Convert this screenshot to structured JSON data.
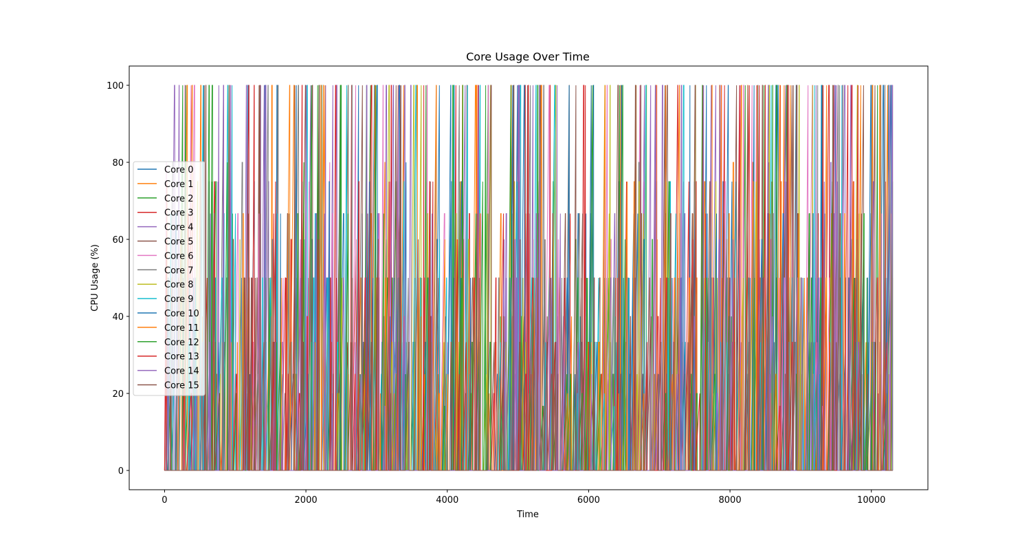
{
  "chart_data": {
    "type": "line",
    "title": "Core Usage Over Time",
    "xlabel": "Time",
    "ylabel": "CPU Usage (%)",
    "xlim": [
      -500,
      10800
    ],
    "ylim": [
      -5,
      105
    ],
    "x_ticks": [
      0,
      2000,
      4000,
      6000,
      8000,
      10000
    ],
    "y_ticks": [
      0,
      20,
      40,
      60,
      80,
      100
    ],
    "x_range": [
      0,
      10300
    ],
    "y_levels": [
      0,
      16.7,
      20,
      25,
      33.3,
      40,
      50,
      60,
      66.7,
      75,
      80,
      100
    ],
    "grid": false,
    "legend_position": "center-left",
    "series": [
      {
        "name": "Core 0",
        "color": "#1f77b4"
      },
      {
        "name": "Core 1",
        "color": "#ff7f0e"
      },
      {
        "name": "Core 2",
        "color": "#2ca02c"
      },
      {
        "name": "Core 3",
        "color": "#d62728"
      },
      {
        "name": "Core 4",
        "color": "#9467bd"
      },
      {
        "name": "Core 5",
        "color": "#8c564b"
      },
      {
        "name": "Core 6",
        "color": "#e377c2"
      },
      {
        "name": "Core 7",
        "color": "#7f7f7f"
      },
      {
        "name": "Core 8",
        "color": "#bcbd22"
      },
      {
        "name": "Core 9",
        "color": "#17becf"
      },
      {
        "name": "Core 10",
        "color": "#1f77b4"
      },
      {
        "name": "Core 11",
        "color": "#ff7f0e"
      },
      {
        "name": "Core 12",
        "color": "#2ca02c"
      },
      {
        "name": "Core 13",
        "color": "#d62728"
      },
      {
        "name": "Core 14",
        "color": "#9467bd"
      },
      {
        "name": "Core 15",
        "color": "#8c564b"
      }
    ]
  }
}
